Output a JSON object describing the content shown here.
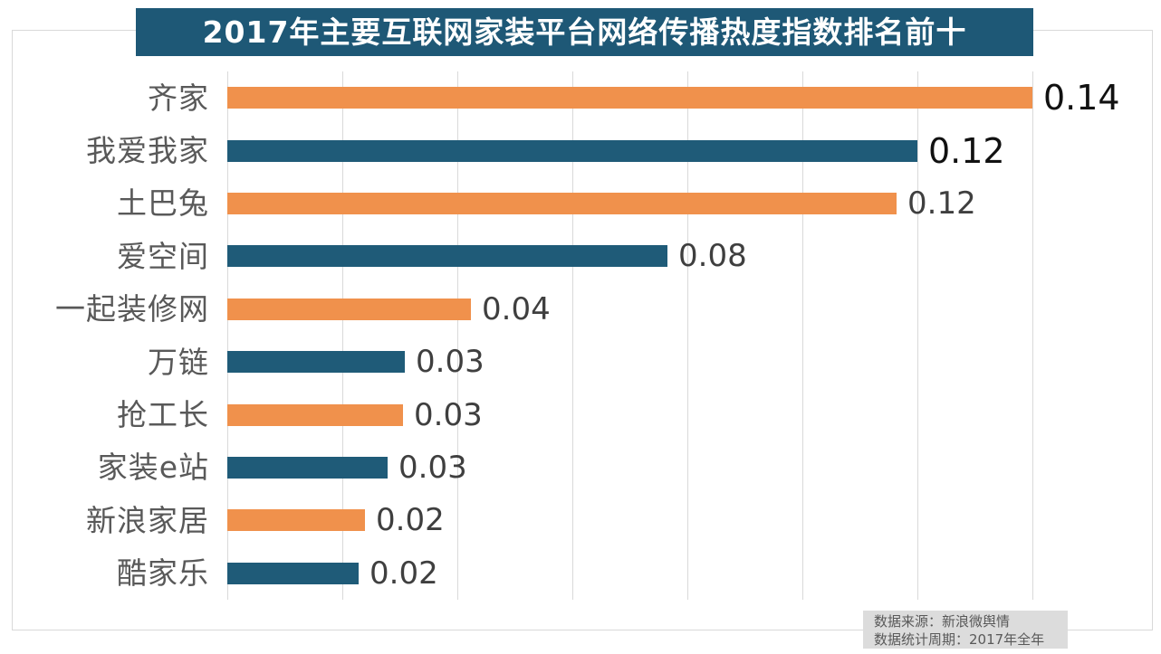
{
  "chart_data": {
    "type": "bar",
    "orientation": "horizontal",
    "title": "2017年主要互联网家装平台网络传播热度指数排名前十",
    "categories": [
      "齐家",
      "我爱我家",
      "土巴兔",
      "爱空间",
      "一起装修网",
      "万链",
      "抢工长",
      "家装e站",
      "新浪家居",
      "酷家乐"
    ],
    "values": [
      0.14,
      0.12,
      0.12,
      0.08,
      0.04,
      0.03,
      0.03,
      0.03,
      0.02,
      0.02
    ],
    "value_labels": [
      "0.14",
      "0.12",
      "0.12",
      "0.08",
      "0.04",
      "0.03",
      "0.03",
      "0.03",
      "0.02",
      "0.02"
    ],
    "bar_values_precise": [
      0.14,
      0.12,
      0.1163,
      0.0766,
      0.0424,
      0.0309,
      0.0306,
      0.0279,
      0.0239,
      0.0228
    ],
    "xlim": [
      0,
      0.14
    ],
    "x_ticks": [
      0,
      0.02,
      0.04,
      0.06,
      0.08,
      0.1,
      0.12,
      0.14
    ],
    "xlabel": "",
    "ylabel": "",
    "grid": "vertical gridlines only, no tick labels shown",
    "legend": "none",
    "emphasized_value_rows": [
      0,
      1
    ]
  },
  "style": {
    "bar_color_odd_rows": "#F0914C",
    "bar_color_even_rows": "#1F5B78",
    "title_bg": "#1E5876",
    "title_color": "#FFFFFF",
    "category_label_color": "#595959",
    "value_label_color_emphasized": "#111111",
    "value_label_color_normal": "#3F3F3F",
    "gridline_color": "#D9D9D9",
    "frame_border_color": "#D9D9D9",
    "source_box_bg": "#DCDCDC",
    "source_text_color": "#595959"
  },
  "source_note": {
    "line1": "数据来源：新浪微舆情",
    "line2": "数据统计周期：2017年全年"
  }
}
